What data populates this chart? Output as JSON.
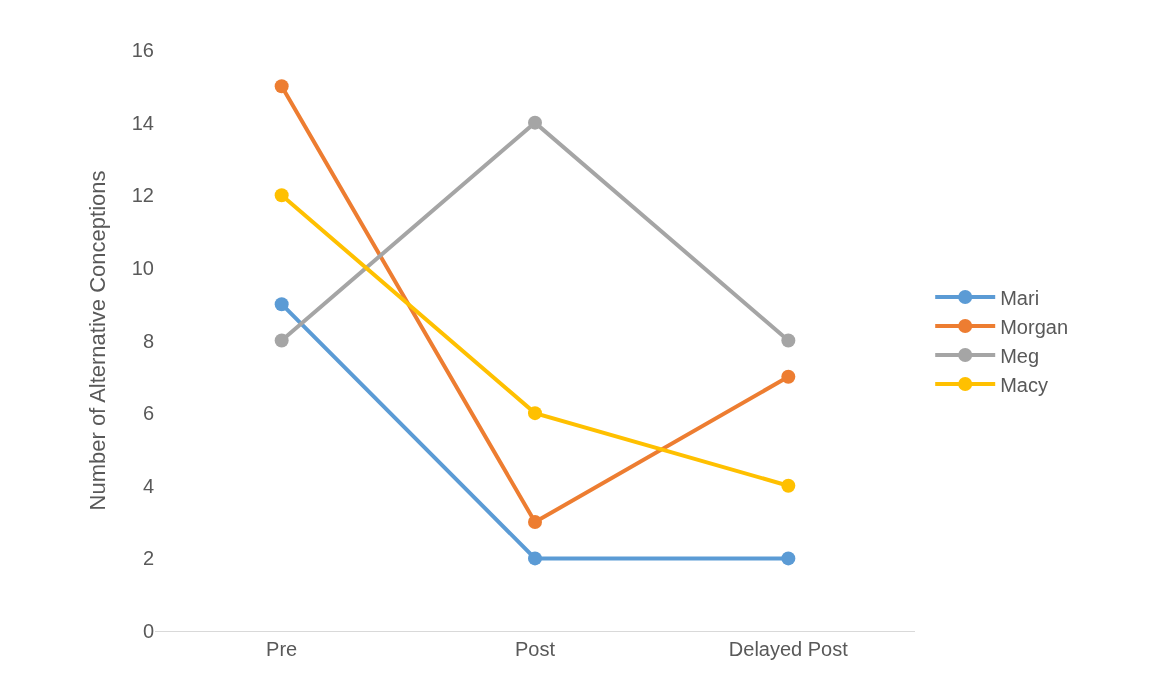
{
  "chart_data": {
    "type": "line",
    "ylabel": "Number of Alternative Conceptions",
    "categories": [
      "Pre",
      "Post",
      "Delayed Post"
    ],
    "series": [
      {
        "name": "Mari",
        "color": "#5b9bd5",
        "values": [
          9,
          2,
          2
        ]
      },
      {
        "name": "Morgan",
        "color": "#ed7d31",
        "values": [
          15,
          3,
          7
        ]
      },
      {
        "name": "Meg",
        "color": "#a5a5a5",
        "values": [
          8,
          14,
          8
        ]
      },
      {
        "name": "Macy",
        "color": "#ffc000",
        "values": [
          12,
          6,
          4
        ]
      }
    ],
    "ylim": [
      0,
      16
    ],
    "yticks": [
      0,
      2,
      4,
      6,
      8,
      10,
      12,
      14,
      16
    ],
    "grid": false,
    "legend": "right",
    "marker": "circle",
    "line_style": "solid"
  }
}
